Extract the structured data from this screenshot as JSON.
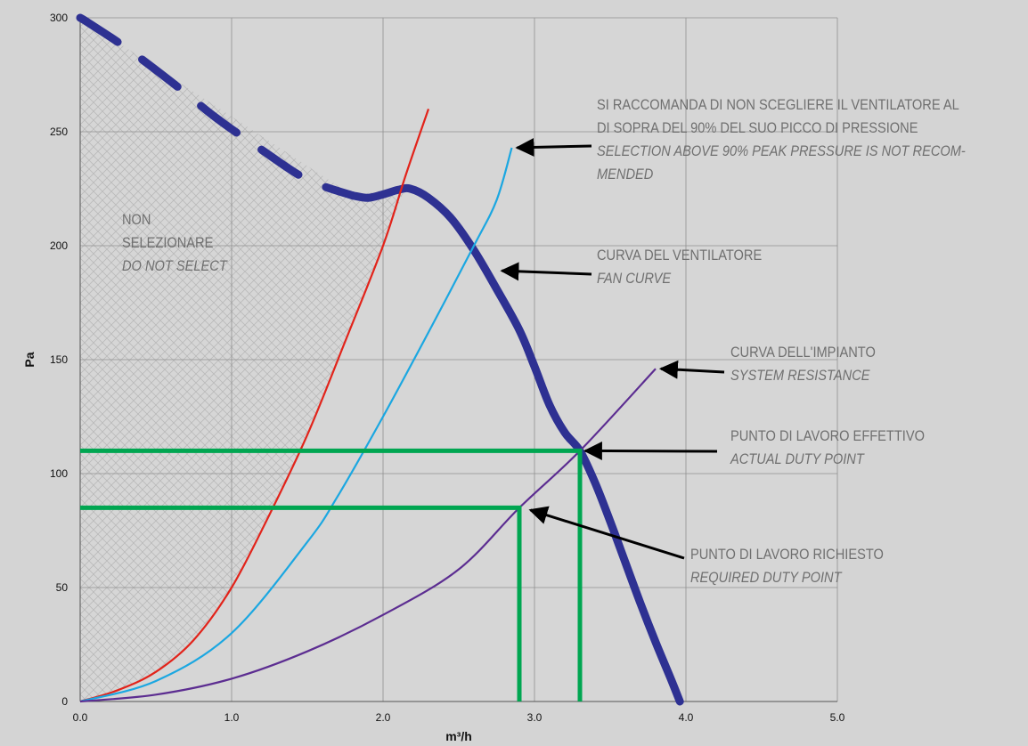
{
  "chart_data": {
    "type": "line",
    "xlabel": "m³/h",
    "ylabel": "Pa",
    "xlim": [
      0,
      5
    ],
    "ylim": [
      0,
      300
    ],
    "x_ticks": [
      "0.0",
      "1.0",
      "2.0",
      "3.0",
      "4.0",
      "5.0"
    ],
    "y_ticks": [
      "0",
      "50",
      "100",
      "150",
      "200",
      "250",
      "300"
    ],
    "grid": true,
    "series": [
      {
        "color": "#2e3192",
        "style": "thick",
        "points": [
          [
            0,
            300
          ],
          [
            0.05,
            298
          ],
          [
            0.3,
            287
          ],
          [
            0.6,
            272
          ],
          [
            0.9,
            256
          ],
          [
            1.2,
            242
          ],
          [
            1.5,
            229
          ],
          [
            1.8,
            222
          ],
          [
            1.9,
            221
          ],
          [
            2.0,
            222.5
          ],
          [
            2.1,
            224.5
          ],
          [
            2.18,
            225
          ],
          [
            2.3,
            221
          ],
          [
            2.45,
            212
          ],
          [
            2.6,
            198
          ],
          [
            2.75,
            181
          ],
          [
            2.9,
            163
          ],
          [
            3.0,
            147
          ],
          [
            3.1,
            130
          ],
          [
            3.2,
            118
          ],
          [
            3.3,
            110
          ],
          [
            3.4,
            96
          ],
          [
            3.5,
            79
          ],
          [
            3.6,
            61
          ],
          [
            3.7,
            43
          ],
          [
            3.8,
            26
          ],
          [
            3.9,
            10
          ],
          [
            3.96,
            0
          ]
        ]
      },
      {
        "color": "#e2231a",
        "style": "thin",
        "points": [
          [
            0,
            0
          ],
          [
            0.25,
            5
          ],
          [
            0.5,
            13
          ],
          [
            0.75,
            27
          ],
          [
            1.0,
            50
          ],
          [
            1.25,
            82
          ],
          [
            1.5,
            117
          ],
          [
            1.75,
            158
          ],
          [
            2.0,
            200
          ],
          [
            2.15,
            231
          ],
          [
            2.3,
            260
          ]
        ]
      },
      {
        "color": "#1ba7e1",
        "style": "thin",
        "points": [
          [
            0,
            0
          ],
          [
            0.5,
            9
          ],
          [
            1.0,
            30
          ],
          [
            1.5,
            70
          ],
          [
            1.7,
            90
          ],
          [
            2.0,
            125
          ],
          [
            2.3,
            162
          ],
          [
            2.6,
            200
          ],
          [
            2.75,
            220
          ],
          [
            2.85,
            243
          ]
        ]
      },
      {
        "color": "#5c2d91",
        "style": "thin",
        "points": [
          [
            0,
            0
          ],
          [
            0.5,
            3
          ],
          [
            1.0,
            10
          ],
          [
            1.5,
            22
          ],
          [
            2.0,
            38
          ],
          [
            2.5,
            58
          ],
          [
            2.9,
            85
          ],
          [
            3.3,
            110
          ],
          [
            3.8,
            146
          ]
        ]
      }
    ],
    "duty_points": [
      {
        "color": "#00a651",
        "x": 3.3,
        "y": 110
      },
      {
        "color": "#00a651",
        "x": 2.9,
        "y": 85
      }
    ],
    "shaded_region": {
      "fill": "hatched",
      "bounds": [
        [
          0,
          0
        ],
        [
          0,
          300
        ],
        [
          1.8,
          222
        ],
        [
          2.15,
          226
        ],
        [
          2.0,
          200
        ],
        [
          1.75,
          158
        ],
        [
          1.5,
          117
        ],
        [
          1.25,
          82
        ],
        [
          1.0,
          50
        ],
        [
          0.75,
          27
        ],
        [
          0.5,
          13
        ],
        [
          0.25,
          5
        ]
      ]
    },
    "annotations": [
      {
        "id": "peak",
        "lines": [
          "SI RACCOMANDA DI NON SCEGLIERE IL VENTILATORE AL",
          "DI SOPRA DEL 90% DEL SUO PICCO DI PRESSIONE"
        ],
        "lines_en": [
          "SELECTION ABOVE 90% PEAK PRESSURE IS NOT RECOM-",
          "MENDED"
        ],
        "arrow_to": [
          2.85,
          243
        ]
      },
      {
        "id": "fan",
        "lines": [
          "CURVA DEL VENTILATORE"
        ],
        "lines_en": [
          "FAN CURVE"
        ],
        "arrow_to": [
          2.75,
          189
        ]
      },
      {
        "id": "system",
        "lines": [
          "CURVA DELL'IMPIANTO"
        ],
        "lines_en": [
          "SYSTEM RESISTANCE"
        ],
        "arrow_to": [
          3.8,
          146
        ]
      },
      {
        "id": "actual",
        "lines": [
          "PUNTO DI LAVORO EFFETTIVO"
        ],
        "lines_en": [
          "ACTUAL DUTY POINT"
        ],
        "arrow_to": [
          3.3,
          110
        ]
      },
      {
        "id": "required",
        "lines": [
          "PUNTO DI LAVORO RICHIESTO"
        ],
        "lines_en": [
          "REQUIRED DUTY POINT"
        ],
        "arrow_to": [
          2.95,
          84
        ]
      },
      {
        "id": "noselect",
        "lines": [
          "NON",
          "SELEZIONARE"
        ],
        "lines_en": [
          "DO NOT SELECT"
        ]
      }
    ]
  }
}
